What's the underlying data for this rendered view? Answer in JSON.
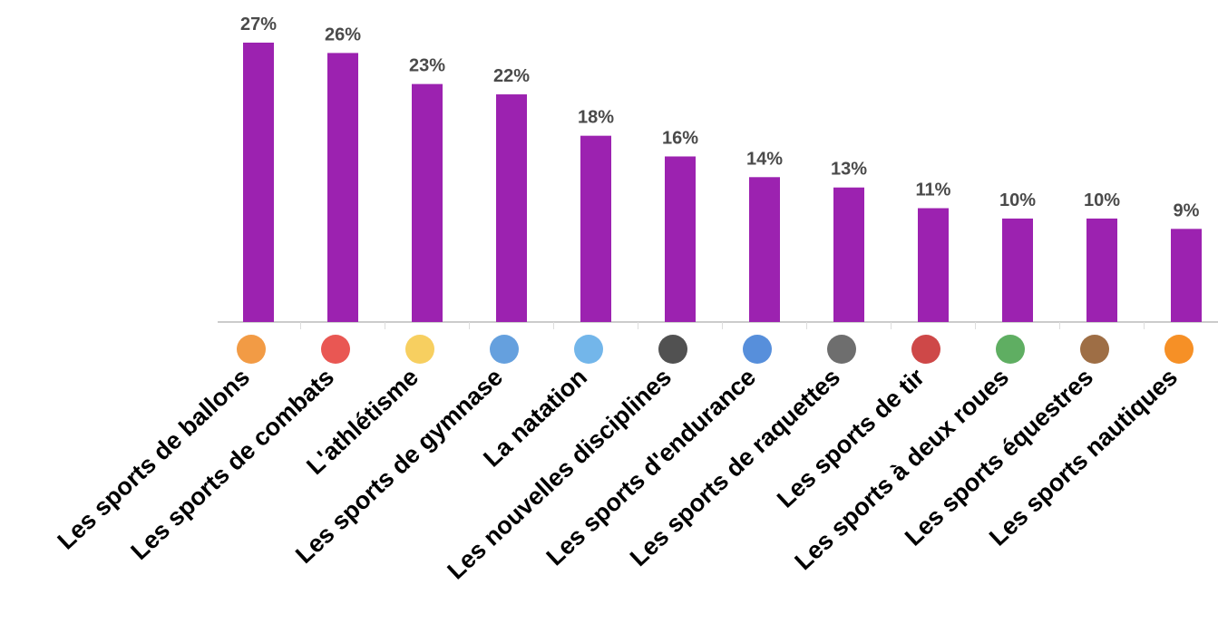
{
  "chart_data": {
    "type": "bar",
    "categories": [
      "Les sports de ballons",
      "Les sports de combats",
      "L'athlétisme",
      "Les sports de gymnase",
      "La natation",
      "Les nouvelles disciplines",
      "Les sports d'endurance",
      "Les sports de raquettes",
      "Les sports de tir",
      "Les sports à deux roues",
      "Les sports équestres",
      "Les sports nautiques"
    ],
    "values": [
      27,
      26,
      23,
      22,
      18,
      16,
      14,
      13,
      11,
      10,
      10,
      9
    ],
    "value_labels": [
      "27%",
      "26%",
      "23%",
      "22%",
      "18%",
      "16%",
      "14%",
      "13%",
      "11%",
      "10%",
      "10%",
      "9%"
    ],
    "color": "#9c22b0"
  }
}
